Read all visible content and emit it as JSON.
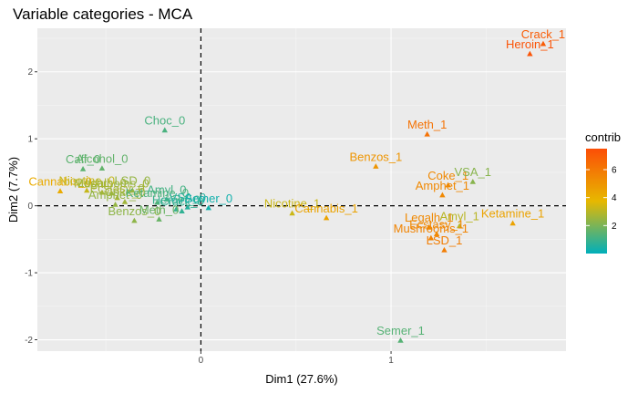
{
  "chart_data": {
    "type": "scatter",
    "title": "Variable categories - MCA",
    "xlabel": "Dim1 (27.6%)",
    "ylabel": "Dim2 (7.7%)",
    "xlim": [
      -0.86,
      1.92
    ],
    "ylim": [
      -2.17,
      2.65
    ],
    "xticks": [
      0,
      1
    ],
    "yticks": [
      -2,
      -1,
      0,
      1,
      2
    ],
    "grid": true,
    "reference_lines": {
      "x": 0,
      "y": 0,
      "style": "dashed"
    },
    "legend": {
      "title": "contrib",
      "position": "right",
      "ticks": [
        2,
        4,
        6
      ],
      "range": [
        0,
        7.5
      ]
    },
    "color_scale": [
      "#00AFBB",
      "#E7B800",
      "#FC4E07"
    ],
    "points": [
      {
        "label": "Crack_1",
        "x": 1.8,
        "y": 2.42,
        "contrib": 7.0
      },
      {
        "label": "Heroin_1",
        "x": 1.73,
        "y": 2.27,
        "contrib": 7.3
      },
      {
        "label": "Meth_1",
        "x": 1.19,
        "y": 1.07,
        "contrib": 6.2
      },
      {
        "label": "Benzos_1",
        "x": 0.92,
        "y": 0.59,
        "contrib": 5.0
      },
      {
        "label": "Coke_1",
        "x": 1.3,
        "y": 0.31,
        "contrib": 5.4
      },
      {
        "label": "VSA_1",
        "x": 1.43,
        "y": 0.36,
        "contrib": 2.2
      },
      {
        "label": "Amphet_1",
        "x": 1.27,
        "y": 0.16,
        "contrib": 5.4
      },
      {
        "label": "Ketamine_1",
        "x": 1.64,
        "y": -0.26,
        "contrib": 4.5
      },
      {
        "label": "Legalh_1",
        "x": 1.2,
        "y": -0.32,
        "contrib": 5.4
      },
      {
        "label": "Amyl_1",
        "x": 1.36,
        "y": -0.3,
        "contrib": 3.0
      },
      {
        "label": "Ecstasy_1",
        "x": 1.24,
        "y": -0.42,
        "contrib": 5.4
      },
      {
        "label": "Mushrooms_1",
        "x": 1.21,
        "y": -0.48,
        "contrib": 5.6
      },
      {
        "label": "LSD_1",
        "x": 1.28,
        "y": -0.66,
        "contrib": 5.8
      },
      {
        "label": "Semer_1",
        "x": 1.05,
        "y": -2.01,
        "contrib": 1.4
      },
      {
        "label": "Nicotine_1",
        "x": 0.48,
        "y": -0.11,
        "contrib": 3.3
      },
      {
        "label": "Cannabis_1",
        "x": 0.66,
        "y": -0.18,
        "contrib": 4.5
      },
      {
        "label": "Choc_0",
        "x": -0.19,
        "y": 1.13,
        "contrib": 1.2
      },
      {
        "label": "Caff_0",
        "x": -0.62,
        "y": 0.55,
        "contrib": 1.5
      },
      {
        "label": "Alcohol_0",
        "x": -0.52,
        "y": 0.56,
        "contrib": 1.6
      },
      {
        "label": "Cannabis_0",
        "x": -0.74,
        "y": 0.22,
        "contrib": 4.2
      },
      {
        "label": "Nicotine_0",
        "x": -0.6,
        "y": 0.23,
        "contrib": 3.2
      },
      {
        "label": "Legalh_0",
        "x": -0.52,
        "y": 0.2,
        "contrib": 2.8
      },
      {
        "label": "Mushrooms_0",
        "x": -0.47,
        "y": 0.19,
        "contrib": 2.6
      },
      {
        "label": "LSD_0",
        "x": -0.36,
        "y": 0.23,
        "contrib": 2.4
      },
      {
        "label": "Ecstasy_0",
        "x": -0.44,
        "y": 0.12,
        "contrib": 2.7
      },
      {
        "label": "Coke_0",
        "x": -0.4,
        "y": 0.06,
        "contrib": 2.6
      },
      {
        "label": "Amphet_0",
        "x": -0.45,
        "y": 0.02,
        "contrib": 2.4
      },
      {
        "label": "Benzos_0",
        "x": -0.35,
        "y": -0.22,
        "contrib": 2.3
      },
      {
        "label": "Ketamine_0",
        "x": -0.23,
        "y": 0.05,
        "contrib": 1.3
      },
      {
        "label": "Amyl_0",
        "x": -0.18,
        "y": 0.1,
        "contrib": 1.1
      },
      {
        "label": "Heroin_0",
        "x": -0.13,
        "y": -0.05,
        "contrib": 0.9
      },
      {
        "label": "Crack_0",
        "x": -0.1,
        "y": -0.08,
        "contrib": 0.8
      },
      {
        "label": "Meth_0",
        "x": -0.22,
        "y": -0.2,
        "contrib": 1.7
      },
      {
        "label": "VSA_0",
        "x": -0.07,
        "y": -0.02,
        "contrib": 0.6
      },
      {
        "label": "Semer_0",
        "x": 0.04,
        "y": -0.03,
        "contrib": 0.3
      }
    ]
  }
}
